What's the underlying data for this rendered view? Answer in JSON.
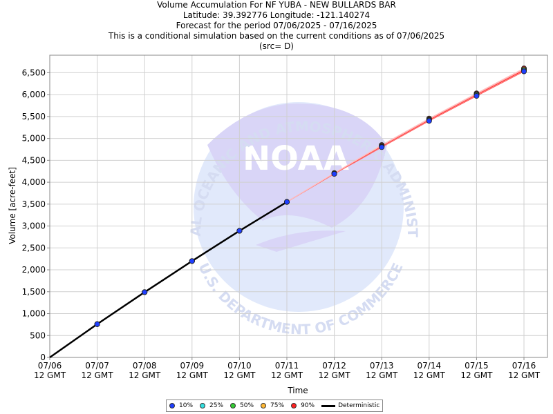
{
  "titles": {
    "line1": "Volume Accumulation For NF YUBA - NEW BULLARDS BAR",
    "line2": "Latitude: 39.392776 Longitude: -121.140274",
    "line3": "Forecast for the period 07/06/2025 - 07/16/2025",
    "line4": "This is a conditional simulation based on the current conditions as of 07/06/2025",
    "line5": "(src= D)"
  },
  "chart_data": {
    "type": "line",
    "title": "Volume Accumulation For NF YUBA - NEW BULLARDS BAR",
    "xlabel": "Time",
    "ylabel": "Volume [acre-feet]",
    "ylim": [
      0,
      6900
    ],
    "yticks": [
      0,
      500,
      1000,
      1500,
      2000,
      2500,
      3000,
      3500,
      4000,
      4500,
      5000,
      5500,
      6000,
      6500
    ],
    "ytick_labels": [
      "0",
      "500",
      "1,000",
      "1,500",
      "2,000",
      "2,500",
      "3,000",
      "3,500",
      "4,000",
      "4,500",
      "5,000",
      "5,500",
      "6,000",
      "6,500"
    ],
    "x": [
      "07/06 12 GMT",
      "07/07 12 GMT",
      "07/08 12 GMT",
      "07/09 12 GMT",
      "07/10 12 GMT",
      "07/11 12 GMT",
      "07/12 12 GMT",
      "07/13 12 GMT",
      "07/14 12 GMT",
      "07/15 12 GMT",
      "07/16 12 GMT"
    ],
    "xtick_top": [
      "07/06",
      "07/07",
      "07/08",
      "07/09",
      "07/10",
      "07/11",
      "07/12",
      "07/13",
      "07/14",
      "07/15",
      "07/16"
    ],
    "xtick_bottom": [
      "12 GMT",
      "12 GMT",
      "12 GMT",
      "12 GMT",
      "12 GMT",
      "12 GMT",
      "12 GMT",
      "12 GMT",
      "12 GMT",
      "12 GMT",
      "12 GMT"
    ],
    "grid": true,
    "legend_position": "bottom-center",
    "series": [
      {
        "name": "10%",
        "color": "#1f3fff",
        "values": [
          0,
          760,
          1490,
          2200,
          2890,
          3550,
          4190,
          4800,
          5400,
          5970,
          6530
        ]
      },
      {
        "name": "25%",
        "color": "#33e0e0",
        "values": [
          0,
          760,
          1490,
          2200,
          2890,
          3550,
          4195,
          4810,
          5415,
          5990,
          6550
        ]
      },
      {
        "name": "50%",
        "color": "#33cc33",
        "values": [
          0,
          760,
          1490,
          2200,
          2890,
          3550,
          4200,
          4820,
          5425,
          6000,
          6560
        ]
      },
      {
        "name": "75%",
        "color": "#ffb833",
        "values": [
          0,
          760,
          1490,
          2200,
          2890,
          3550,
          4205,
          4835,
          5440,
          6015,
          6580
        ]
      },
      {
        "name": "90%",
        "color": "#ff2020",
        "values": [
          0,
          760,
          1490,
          2200,
          2890,
          3550,
          4210,
          4850,
          5455,
          6030,
          6600
        ]
      },
      {
        "name": "Deterministic",
        "color": "#000000",
        "values": [
          0,
          760,
          1490,
          2200,
          2890,
          3550,
          null,
          null,
          null,
          null,
          null
        ]
      }
    ]
  },
  "watermark": {
    "text_top": "NATIONAL OCEANIC AND ATMOSPHERIC ADMINISTRATION",
    "text_bottom": "U.S. DEPARTMENT OF COMMERCE",
    "logo": "NOAA"
  },
  "colors": {
    "watermark_blue": "#dfe7fb",
    "watermark_purple": "#d8d5f7",
    "grid": "#cccccc",
    "upper_band": "#ffb0b0",
    "median_line": "#ff3030"
  }
}
